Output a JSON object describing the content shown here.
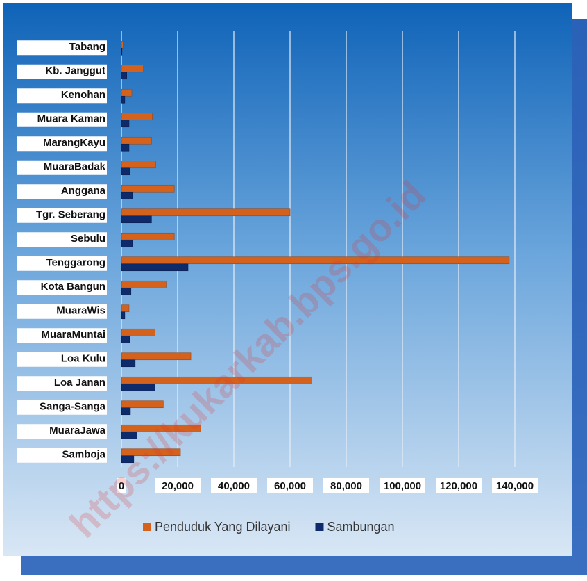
{
  "chart_data": {
    "type": "hbar",
    "categories": [
      "Tabang",
      "Kb. Janggut",
      "Kenohan",
      "Muara Kaman",
      "MarangKayu",
      "MuaraBadak",
      "Anggana",
      "Tgr.  Seberang",
      "Sebulu",
      "Tenggarong",
      "Kota Bangun",
      "MuaraWis",
      "MuaraMuntai",
      "Loa Kulu",
      "Loa Janan",
      "Sanga-Sanga",
      "MuaraJawa",
      "Samboja"
    ],
    "series": [
      {
        "name": "Penduduk Yang Dilayani",
        "color": "#d4621c",
        "values": [
          600,
          7800,
          3700,
          11000,
          10700,
          12200,
          18800,
          60000,
          18800,
          138000,
          15900,
          2700,
          12000,
          24700,
          67800,
          14900,
          28200,
          21000
        ]
      },
      {
        "name": "Sambungan",
        "color": "#0d2a6b",
        "values": [
          200,
          1900,
          1200,
          2700,
          2700,
          2900,
          3900,
          10700,
          3900,
          23700,
          3400,
          1200,
          2900,
          4900,
          12000,
          3200,
          5600,
          4400
        ]
      }
    ],
    "xlim": [
      0,
      140000
    ],
    "xticks": [
      0,
      {
        "value": 20000,
        "label": "20,000"
      },
      {
        "value": 40000,
        "label": "40,000"
      },
      {
        "value": 60000,
        "label": "60,000"
      },
      {
        "value": 80000,
        "label": "80,000"
      },
      {
        "value": 100000,
        "label": "100,000"
      },
      {
        "value": 120000,
        "label": "120,000"
      },
      {
        "value": 140000,
        "label": "140,000"
      }
    ],
    "grid": true,
    "legend": "bottom",
    "watermark": "https://kukarkab.bps.go.id"
  }
}
